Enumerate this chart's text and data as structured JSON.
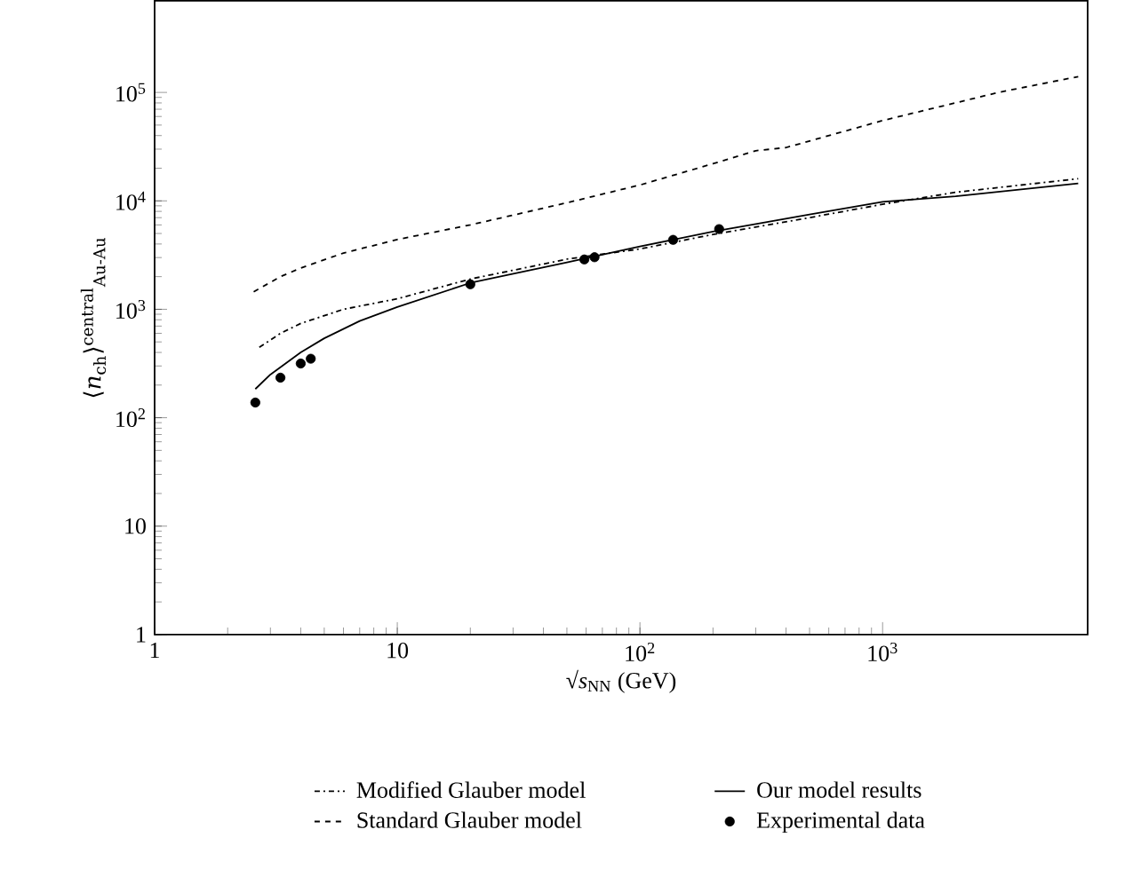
{
  "chart_data": {
    "type": "line",
    "xlabel": "√*s*$_{NN}$ (GeV)",
    "ylabel": "⟨*n*$_{ch}$⟩$^{central}$$_{Au-Au}$",
    "log": "xy",
    "xlim": [
      1,
      7000
    ],
    "ylim": [
      1,
      700000
    ],
    "xticks": [
      1,
      10,
      {
        "value": 100,
        "label": "10$^{2}$"
      },
      {
        "value": 1000,
        "label": "10$^{3}$"
      }
    ],
    "yticks": [
      1,
      10,
      {
        "value": 100,
        "label": "10$^{2}$"
      },
      {
        "value": 1000,
        "label": "10$^{3}$"
      },
      {
        "value": 10000,
        "label": "10$^{4}$"
      },
      {
        "value": 100000,
        "label": "10$^{5}$"
      }
    ],
    "grid": false,
    "legend": "bottom",
    "series": [
      {
        "name": "Modified Glauber model",
        "color": "#000000",
        "line_style": "dashdot",
        "x": [
          2.7,
          3.3,
          4,
          6,
          10,
          20,
          50,
          100,
          200,
          500,
          1000,
          2000,
          6400
        ],
        "values": [
          446,
          600,
          740,
          1000,
          1250,
          1900,
          2900,
          3600,
          4900,
          7000,
          9300,
          12000,
          16000
        ]
      },
      {
        "name": "Our model results",
        "color": "#000000",
        "line_style": "solid",
        "x": [
          2.6,
          3,
          4,
          5,
          7,
          10,
          20,
          50,
          100,
          200,
          500,
          1000,
          2000,
          6400
        ],
        "values": [
          184,
          250,
          400,
          540,
          780,
          1050,
          1750,
          2700,
          3800,
          5200,
          7500,
          9800,
          11000,
          14500
        ]
      },
      {
        "name": "Standard Glauber model",
        "color": "#000000",
        "line_style": "dashed",
        "x": [
          2.56,
          3.3,
          4,
          6,
          10,
          20,
          50,
          100,
          200,
          300,
          400,
          1000,
          3000,
          6400
        ],
        "values": [
          1450,
          2000,
          2400,
          3300,
          4400,
          6000,
          9600,
          14000,
          22000,
          29000,
          31000,
          55000,
          100000,
          140000
        ]
      },
      {
        "name": "Experimental data",
        "color": "#000000",
        "type": "scatter",
        "marker": "circle",
        "x": [
          2.6,
          3.3,
          4.0,
          4.4,
          20,
          59,
          65,
          137,
          212
        ],
        "values": [
          138,
          234,
          316,
          350,
          1700,
          2880,
          3020,
          4370,
          5490
        ]
      }
    ]
  }
}
